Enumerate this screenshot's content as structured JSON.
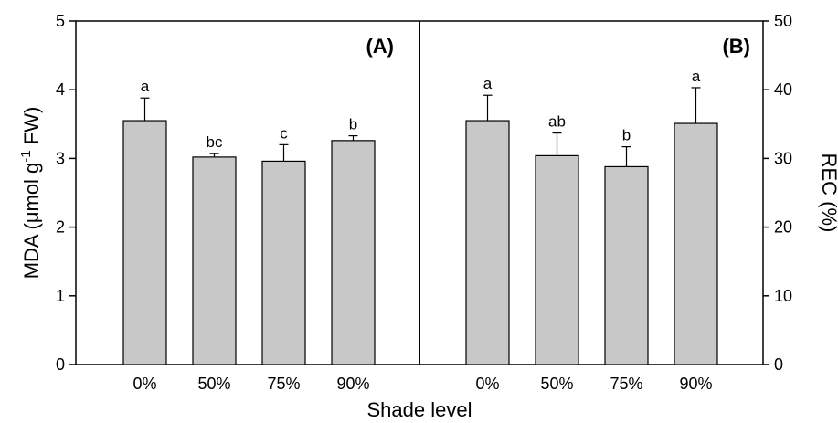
{
  "chart_data": [
    {
      "type": "bar",
      "panel_label": "(A)",
      "categories": [
        "0%",
        "50%",
        "75%",
        "90%"
      ],
      "values": [
        3.55,
        3.02,
        2.96,
        3.26
      ],
      "error_plus": [
        0.33,
        0.05,
        0.24,
        0.07
      ],
      "significance": [
        "a",
        "bc",
        "c",
        "b"
      ],
      "ylabel": "MDA (μmol g⁻¹ FW)",
      "ylabel_parts": {
        "before": "MDA (μmol g",
        "superscript": "-1",
        "after": " FW)"
      },
      "yticks": [
        "0",
        "1",
        "2",
        "3",
        "4",
        "5"
      ],
      "ylim": [
        0,
        5
      ],
      "y_axis_side": "left",
      "bar_color": "#c8c8c8"
    },
    {
      "type": "bar",
      "panel_label": "(B)",
      "categories": [
        "0%",
        "50%",
        "75%",
        "90%"
      ],
      "values": [
        35.5,
        30.4,
        28.8,
        35.1
      ],
      "error_plus": [
        3.7,
        3.3,
        2.9,
        5.2
      ],
      "significance": [
        "a",
        "ab",
        "b",
        "a"
      ],
      "ylabel": "REC (%)",
      "yticks": [
        "0",
        "10",
        "20",
        "30",
        "40",
        "50"
      ],
      "ylim": [
        0,
        50
      ],
      "y_axis_side": "right",
      "bar_color": "#c8c8c8"
    }
  ],
  "xlabel": "Shade level"
}
